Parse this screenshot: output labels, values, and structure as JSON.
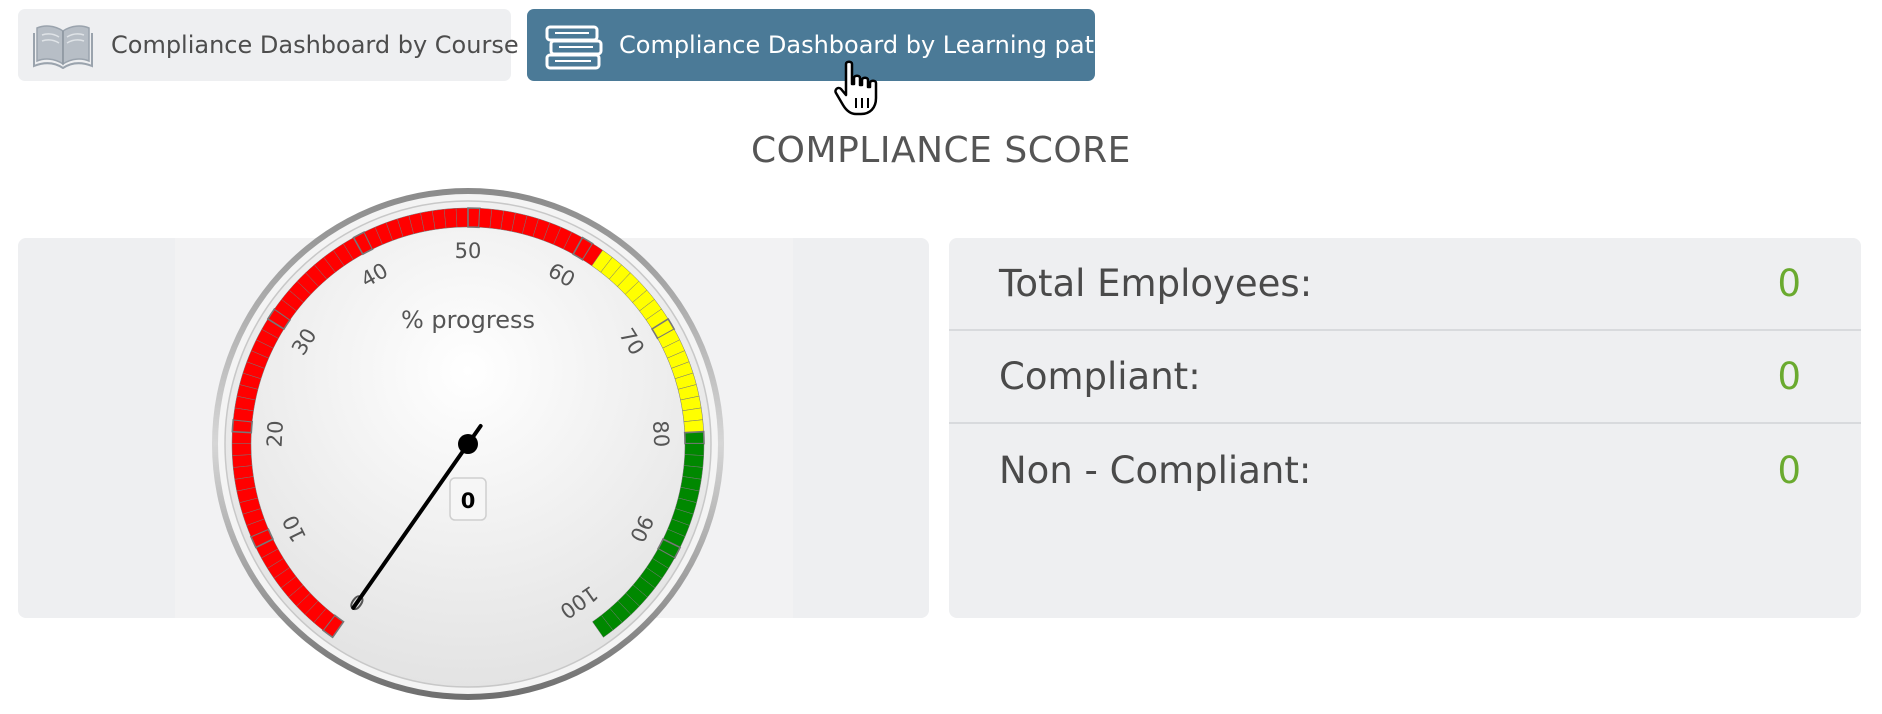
{
  "tabs": {
    "course": {
      "label": "Compliance Dashboard by Course",
      "icon": "open-book-icon"
    },
    "path": {
      "label": "Compliance Dashboard by Learning path",
      "icon": "book-stack-icon",
      "active": true
    }
  },
  "title": "COMPLIANCE SCORE",
  "gauge": {
    "title": "% progress",
    "value": 0,
    "value_label": "0",
    "min": 0,
    "max": 100,
    "tick_labels": [
      "0",
      "10",
      "20",
      "30",
      "40",
      "50",
      "60",
      "70",
      "80",
      "90",
      "100"
    ],
    "bands": [
      {
        "from": 0,
        "to": 62,
        "color": "#ff0000"
      },
      {
        "from": 62,
        "to": 80,
        "color": "#ffff00"
      },
      {
        "from": 80,
        "to": 100,
        "color": "#008800"
      }
    ]
  },
  "stats": [
    {
      "label": "Total Employees:",
      "value": "0"
    },
    {
      "label": "Compliant:",
      "value": "0"
    },
    {
      "label": "Non - Compliant:",
      "value": "0"
    }
  ],
  "colors": {
    "active_tab": "#4b7a97",
    "stat_value": "#6aaa2f",
    "panel_bg": "#eeeff1"
  }
}
